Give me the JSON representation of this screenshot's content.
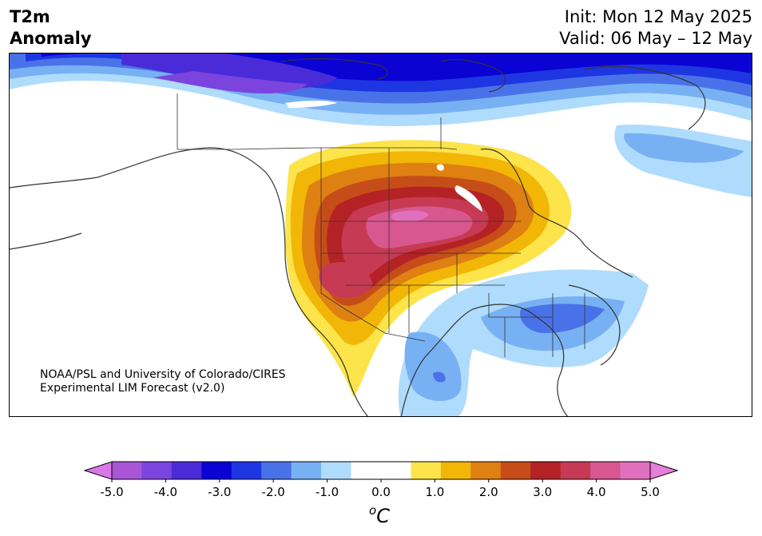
{
  "title": {
    "line1": "T2m",
    "line2": "Anomaly"
  },
  "init_label": "Init: Mon 12 May 2025",
  "valid_label": "Valid: 06 May – 12 May",
  "credit": {
    "line1": "NOAA/PSL and University of Colorado/CIRES",
    "line2": "Experimental LIM Forecast (v2.0)"
  },
  "colorbar": {
    "ticks": [
      "-5.0",
      "-4.0",
      "-3.0",
      "-2.0",
      "-1.0",
      "0.0",
      "1.0",
      "2.0",
      "3.0",
      "4.0",
      "5.0"
    ],
    "unit_base": "C",
    "unit_sup": "o",
    "colors": [
      "#a855d6",
      "#7b44de",
      "#4a2bd8",
      "#0b02d4",
      "#1e36e2",
      "#4a72e8",
      "#78b1f3",
      "#afdcfc",
      "#ffffff",
      "#ffffff",
      "#fce44a",
      "#f2b607",
      "#df8012",
      "#c64d19",
      "#b52225",
      "#c63a54",
      "#d8578f",
      "#e070bd"
    ],
    "extend_low_color": "#d977e8",
    "extend_high_color": "#e77ed8"
  }
}
